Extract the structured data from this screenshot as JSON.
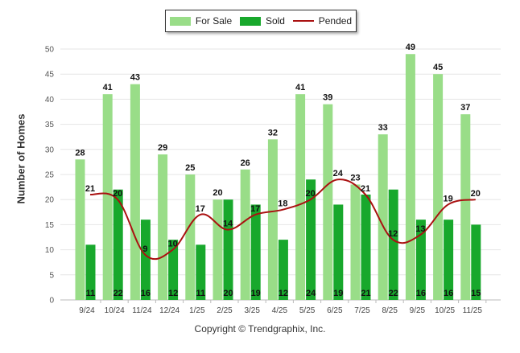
{
  "chart_data": {
    "type": "bar",
    "title": "",
    "xlabel": "",
    "ylabel": "Number of Homes",
    "ylim": [
      0,
      50
    ],
    "yticks": [
      0,
      5,
      10,
      15,
      20,
      25,
      30,
      35,
      40,
      45,
      50
    ],
    "grid": true,
    "legend_position": "top-center",
    "categories": [
      "9/24",
      "10/24",
      "11/24",
      "12/24",
      "1/25",
      "2/25",
      "3/25",
      "4/25",
      "5/25",
      "6/25",
      "7/25",
      "8/25",
      "9/25",
      "10/25",
      "11/25"
    ],
    "series": [
      {
        "name": "For Sale",
        "kind": "bar",
        "color": "#99dd88",
        "values": [
          28,
          41,
          43,
          29,
          25,
          20,
          26,
          32,
          41,
          39,
          23,
          33,
          49,
          45,
          37
        ]
      },
      {
        "name": "Sold",
        "kind": "bar",
        "color": "#18a82c",
        "values": [
          11,
          22,
          16,
          12,
          11,
          20,
          19,
          12,
          24,
          19,
          21,
          22,
          16,
          16,
          15
        ]
      },
      {
        "name": "Pended",
        "kind": "line",
        "color": "#aa1111",
        "values": [
          21,
          20,
          9,
          10,
          17,
          14,
          17,
          18,
          20,
          24,
          21,
          12,
          13,
          19,
          20
        ]
      }
    ],
    "footer": "Copyright © Trendgraphix, Inc."
  },
  "colors": {
    "grid": "#e6e6e6",
    "axis": "#bbbbbb"
  }
}
